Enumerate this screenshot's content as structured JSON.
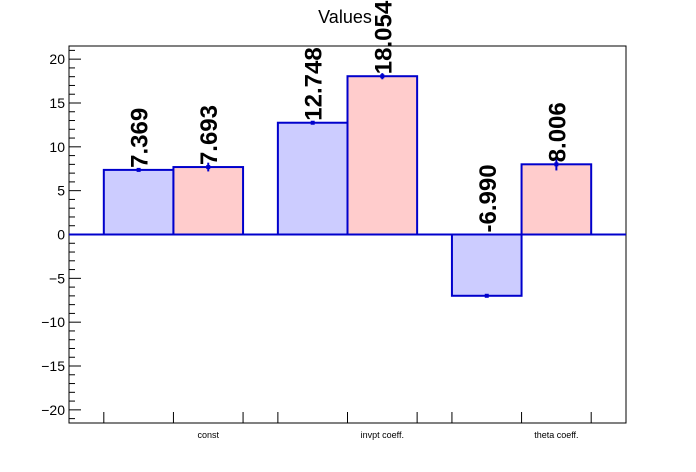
{
  "chart_data": {
    "type": "bar",
    "title": "Values",
    "categories": [
      "const",
      "invpt coeff.",
      "theta coeff."
    ],
    "series": [
      {
        "values": [
          7.369,
          12.748,
          -6.99
        ],
        "errors": [
          0.0,
          0.0,
          0.0
        ],
        "labels": [
          "7.369",
          "12.748",
          "-6.990"
        ],
        "fill": "#ccccff",
        "stroke": "#0000cc"
      },
      {
        "values": [
          7.693,
          18.054,
          8.006
        ],
        "errors": [
          0.5,
          0.35,
          0.7
        ],
        "labels": [
          "7.693",
          "18.054",
          "8.006"
        ],
        "fill": "#ffcccc",
        "stroke": "#0000cc"
      }
    ],
    "ylim": [
      -21.5,
      21.5
    ],
    "yticks": [
      -20,
      -15,
      -10,
      -5,
      0,
      5,
      10,
      15,
      20
    ],
    "ytick_labels": [
      "−20",
      "−15",
      "−10",
      "−5",
      "0",
      "5",
      "10",
      "15",
      "20"
    ],
    "xlabel": "",
    "ylabel": "",
    "grid": false,
    "legend": "none"
  }
}
